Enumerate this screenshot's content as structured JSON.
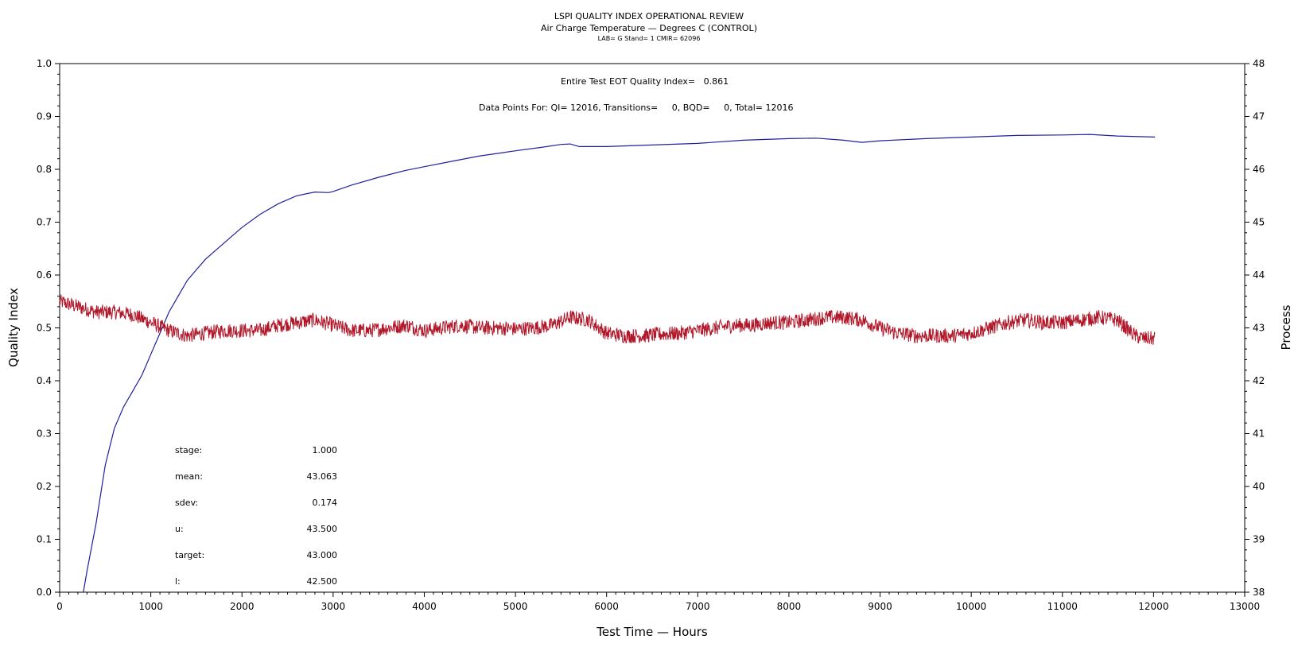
{
  "chart_data": {
    "type": "line",
    "title": "LSPI QUALITY INDEX OPERATIONAL REVIEW",
    "subtitle": "Air Charge Temperature — Degrees C (CONTROL)",
    "subsubtitle": "LAB= G Stand= 1 CMIR= 62096",
    "xlabel": "Test Time — Hours",
    "ylabel": "Quality Index",
    "y2label": "Process",
    "xlim": [
      0,
      13000
    ],
    "ylim": [
      0.0,
      1.0
    ],
    "y2lim": [
      38,
      48
    ],
    "x_ticks": [
      "0",
      "1000",
      "2000",
      "3000",
      "4000",
      "5000",
      "6000",
      "7000",
      "8000",
      "9000",
      "10000",
      "11000",
      "12000",
      "13000"
    ],
    "y_ticks": [
      "0.0",
      "0.1",
      "0.2",
      "0.3",
      "0.4",
      "0.5",
      "0.6",
      "0.7",
      "0.8",
      "0.9",
      "1.0"
    ],
    "y2_ticks": [
      "38",
      "39",
      "40",
      "41",
      "42",
      "43",
      "44",
      "45",
      "46",
      "47",
      "48"
    ],
    "annotations": {
      "quality_index": "Entire Test EOT Quality Index=   0.861",
      "data_points": "Data Points For: QI= 12016, Transitions=     0, BQD=     0, Total= 12016"
    },
    "stats": [
      {
        "label": "stage:",
        "value": "1.000"
      },
      {
        "label": "mean:",
        "value": "43.063"
      },
      {
        "label": "sdev:",
        "value": "0.174"
      },
      {
        "label": "u:",
        "value": "43.500"
      },
      {
        "label": "target:",
        "value": "43.000"
      },
      {
        "label": "l:",
        "value": "42.500"
      }
    ],
    "series": [
      {
        "axis": "left",
        "color": "#1f1fa0",
        "x": [
          260,
          300,
          400,
          500,
          600,
          700,
          800,
          900,
          1000,
          1100,
          1200,
          1300,
          1400,
          1500,
          1600,
          1800,
          2000,
          2200,
          2400,
          2600,
          2800,
          2950,
          3000,
          3200,
          3500,
          3800,
          4000,
          4300,
          4600,
          5000,
          5300,
          5500,
          5600,
          5700,
          6000,
          6500,
          7000,
          7500,
          8000,
          8300,
          8600,
          8800,
          9000,
          9500,
          10000,
          10500,
          11000,
          11300,
          11600,
          12016
        ],
        "y": [
          0.0,
          0.04,
          0.13,
          0.24,
          0.31,
          0.35,
          0.38,
          0.41,
          0.45,
          0.49,
          0.53,
          0.56,
          0.59,
          0.61,
          0.63,
          0.66,
          0.69,
          0.715,
          0.735,
          0.75,
          0.757,
          0.756,
          0.758,
          0.77,
          0.785,
          0.798,
          0.805,
          0.815,
          0.825,
          0.835,
          0.842,
          0.847,
          0.848,
          0.843,
          0.843,
          0.846,
          0.849,
          0.855,
          0.858,
          0.859,
          0.855,
          0.851,
          0.854,
          0.858,
          0.861,
          0.864,
          0.865,
          0.866,
          0.863,
          0.861
        ]
      },
      {
        "axis": "right",
        "color": "#b0182a",
        "x": [
          0,
          200,
          400,
          600,
          800,
          1000,
          1200,
          1400,
          1600,
          1800,
          2000,
          2200,
          2400,
          2600,
          2800,
          3000,
          3200,
          3400,
          3600,
          3800,
          4000,
          4200,
          4400,
          4600,
          4800,
          5000,
          5200,
          5400,
          5600,
          5800,
          6000,
          6200,
          6400,
          6600,
          6800,
          7000,
          7200,
          7400,
          7600,
          7800,
          8000,
          8200,
          8400,
          8600,
          8800,
          9000,
          9200,
          9400,
          9600,
          9800,
          10000,
          10200,
          10400,
          10600,
          10800,
          11000,
          11200,
          11400,
          11600,
          11700,
          11800,
          11900,
          12016
        ],
        "y": [
          43.5,
          43.4,
          43.3,
          43.3,
          43.25,
          43.1,
          42.95,
          42.85,
          42.9,
          42.95,
          42.95,
          42.95,
          43.05,
          43.1,
          43.15,
          43.05,
          42.95,
          42.95,
          43.0,
          43.05,
          42.95,
          43.0,
          43.05,
          43.0,
          43.0,
          42.98,
          43.0,
          43.05,
          43.2,
          43.15,
          42.9,
          42.85,
          42.85,
          42.88,
          42.9,
          42.95,
          43.0,
          43.05,
          43.05,
          43.1,
          43.1,
          43.15,
          43.2,
          43.2,
          43.15,
          43.0,
          42.9,
          42.85,
          42.85,
          42.85,
          42.9,
          43.0,
          43.1,
          43.15,
          43.1,
          43.1,
          43.15,
          43.2,
          43.15,
          43.0,
          42.85,
          42.8,
          42.8
        ]
      }
    ]
  }
}
